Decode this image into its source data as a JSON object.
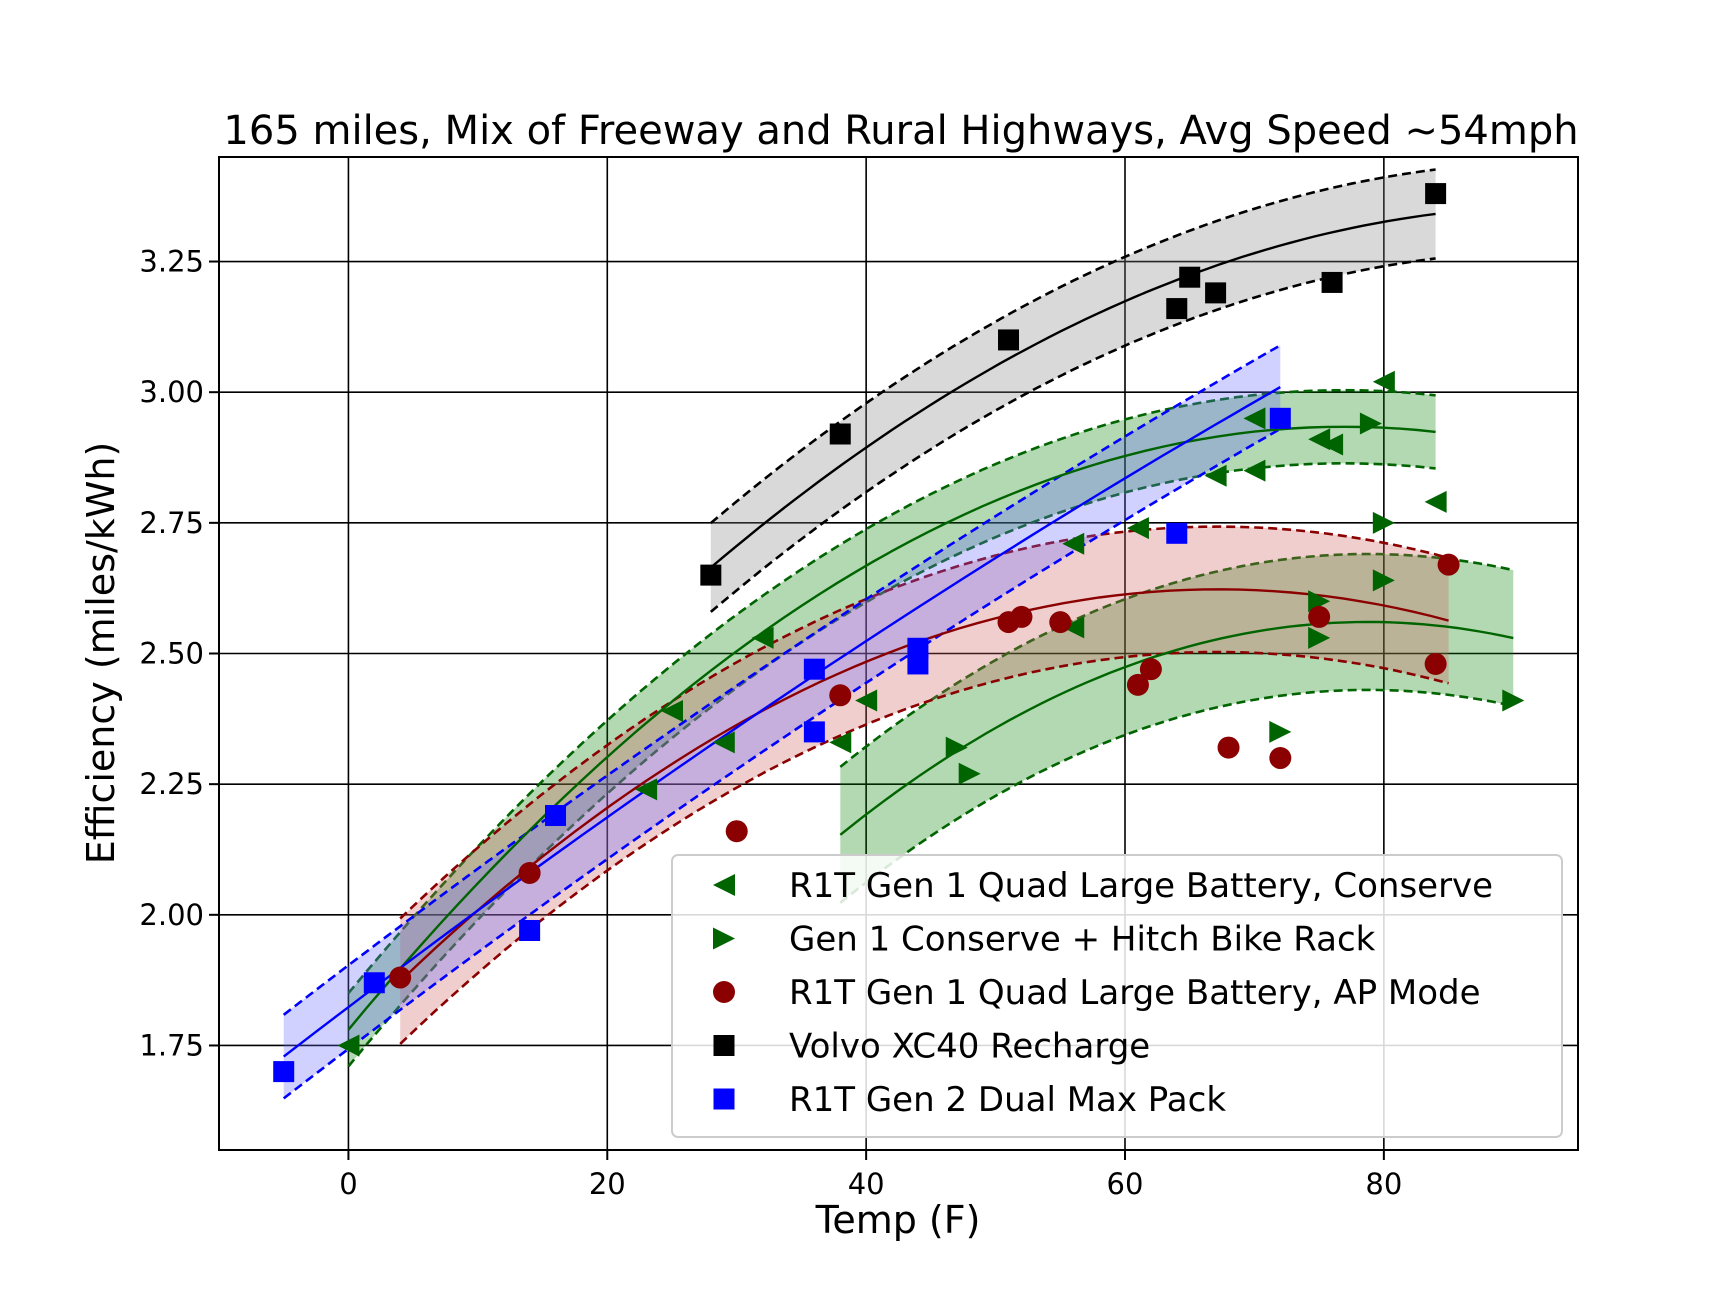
{
  "chart_data": {
    "type": "scatter",
    "title": "165 miles, Mix of Freeway and Rural Highways, Avg Speed ~54mph",
    "xlabel": "Temp (F)",
    "ylabel": "Efficiency (miles/kWh)",
    "xlim": [
      -10,
      95
    ],
    "ylim": [
      1.55,
      3.45
    ],
    "xticks": [
      0,
      20,
      40,
      60,
      80
    ],
    "yticks": [
      1.75,
      2.0,
      2.25,
      2.5,
      2.75,
      3.0,
      3.25
    ],
    "xtick_labels": [
      "0",
      "20",
      "40",
      "60",
      "80"
    ],
    "ytick_labels": [
      "1.75",
      "2.00",
      "2.25",
      "2.50",
      "2.75",
      "3.00",
      "3.25"
    ],
    "grid": true,
    "legend_position": "lower-right",
    "series": [
      {
        "name": "R1T Gen 1 Quad Large Battery, Conserve",
        "marker": "triangle-left",
        "color": "#006400",
        "fill_color": "#008000",
        "points": [
          [
            0,
            1.75
          ],
          [
            23,
            2.24
          ],
          [
            25,
            2.39
          ],
          [
            29,
            2.33
          ],
          [
            32,
            2.53
          ],
          [
            38,
            2.33
          ],
          [
            40,
            2.41
          ],
          [
            56,
            2.71
          ],
          [
            56,
            2.55
          ],
          [
            61,
            2.74
          ],
          [
            67,
            2.84
          ],
          [
            70,
            2.85
          ],
          [
            70,
            2.95
          ],
          [
            75,
            2.91
          ],
          [
            76,
            2.9
          ],
          [
            80,
            3.02
          ],
          [
            84,
            2.79
          ]
        ],
        "fit_x": [
          0,
          84
        ],
        "fit_coeffs": [
          1.78,
          0.03,
          -0.000195
        ],
        "band": 0.07
      },
      {
        "name": "Gen 1 Conserve + Hitch Bike Rack",
        "marker": "triangle-right",
        "color": "#006400",
        "fill_color": "#008000",
        "points": [
          [
            47,
            2.32
          ],
          [
            48,
            2.27
          ],
          [
            72,
            2.35
          ],
          [
            75,
            2.53
          ],
          [
            75,
            2.6
          ],
          [
            79,
            2.94
          ],
          [
            80,
            2.75
          ],
          [
            80,
            2.64
          ],
          [
            90,
            2.41
          ]
        ],
        "fit_x": [
          38,
          90
        ],
        "fit_coeffs": [
          1.04,
          0.0386,
          -0.000245
        ],
        "band": 0.13
      },
      {
        "name": "R1T Gen 1 Quad Large Battery, AP Mode",
        "marker": "circle",
        "color": "#8b0000",
        "fill_color": "#cd5c5c",
        "points": [
          [
            4,
            1.88
          ],
          [
            14,
            2.08
          ],
          [
            30,
            2.16
          ],
          [
            38,
            2.42
          ],
          [
            51,
            2.56
          ],
          [
            52,
            2.57
          ],
          [
            55,
            2.56
          ],
          [
            61,
            2.44
          ],
          [
            62,
            2.47
          ],
          [
            68,
            2.32
          ],
          [
            72,
            2.3
          ],
          [
            75,
            2.57
          ],
          [
            84,
            2.48
          ],
          [
            85,
            2.67
          ]
        ],
        "fit_x": [
          4,
          85
        ],
        "fit_coeffs": [
          1.775,
          0.02525,
          -0.000188
        ],
        "band": 0.12
      },
      {
        "name": "Volvo XC40 Recharge",
        "marker": "square",
        "color": "#000000",
        "fill_color": "#808080",
        "points": [
          [
            28,
            2.65
          ],
          [
            38,
            2.92
          ],
          [
            51,
            3.1
          ],
          [
            64,
            3.16
          ],
          [
            65,
            3.22
          ],
          [
            67,
            3.19
          ],
          [
            76,
            3.21
          ],
          [
            84,
            3.38
          ]
        ],
        "fit_x": [
          28,
          84
        ],
        "fit_coeffs": [
          1.95,
          0.03,
          -0.00016
        ],
        "band": 0.085
      },
      {
        "name": "R1T Gen 2 Dual Max Pack",
        "marker": "square",
        "color": "#0000ff",
        "fill_color": "#6666ff",
        "points": [
          [
            -5,
            1.7
          ],
          [
            2,
            1.87
          ],
          [
            14,
            1.97
          ],
          [
            16,
            2.19
          ],
          [
            36,
            2.47
          ],
          [
            36,
            2.35
          ],
          [
            44,
            2.51
          ],
          [
            44,
            2.48
          ],
          [
            64,
            2.73
          ],
          [
            72,
            2.95
          ]
        ],
        "fit_x": [
          -5,
          72
        ],
        "fit_coeffs": [
          1.8235,
          0.0188,
          -3.23e-05
        ],
        "band": 0.08
      }
    ]
  }
}
